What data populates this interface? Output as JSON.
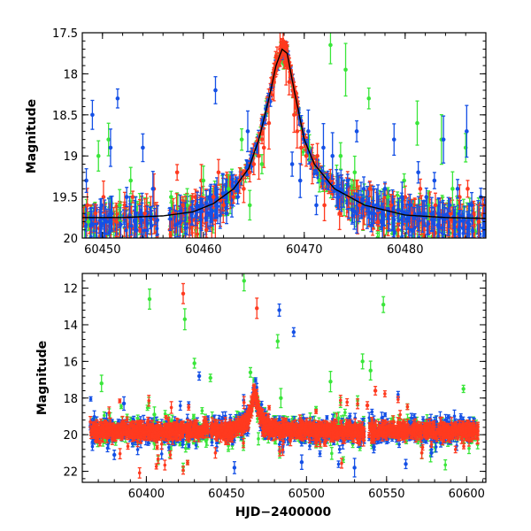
{
  "chart_data": [
    {
      "type": "scatter",
      "panel": "top",
      "title": "",
      "xlabel": "",
      "ylabel": "Magnitude",
      "xlim": [
        60448,
        60488
      ],
      "ylim": [
        17.5,
        20
      ],
      "y_inverted": true,
      "xticks": [
        60450,
        60460,
        60470,
        60480
      ],
      "yticks": [
        17.5,
        18,
        18.5,
        19,
        19.5,
        20
      ],
      "grid": false,
      "colors": {
        "red": "#ff3a1f",
        "green": "#3ae63a",
        "blue": "#1450e6",
        "model": "#000000"
      },
      "model_curve": {
        "description_free": true,
        "x": [
          60448,
          60452,
          60456,
          60459,
          60461,
          60463,
          60464.5,
          60465.5,
          60466.5,
          60467.2,
          60467.8,
          60468.3,
          60469,
          60470,
          60471,
          60473,
          60476,
          60480,
          60484,
          60488
        ],
        "y": [
          19.75,
          19.75,
          19.73,
          19.68,
          19.58,
          19.4,
          19.15,
          18.8,
          18.3,
          17.9,
          17.7,
          17.75,
          18.2,
          18.8,
          19.1,
          19.4,
          19.6,
          19.72,
          19.75,
          19.76
        ]
      },
      "series": [
        {
          "color": "red",
          "x": [
            60448.5,
            60449.3,
            60450.1,
            60451.4,
            60452.2,
            60453.0,
            60454.2,
            60455.1,
            60457.0,
            60457.4,
            60458.0,
            60458.6,
            60459.2,
            60459.8,
            60460.3,
            60461.0,
            60461.5,
            60462.0,
            60462.6,
            60463.0,
            60463.6,
            60464.0,
            60464.6,
            60465.0,
            60465.5,
            60466.0,
            60466.5,
            60467.0,
            60467.3,
            60467.6,
            60467.9,
            60468.2,
            60468.5,
            60469.0,
            60469.3,
            60469.7,
            60470.2,
            60470.8,
            60471.3,
            60472.0,
            60472.6,
            60473.5,
            60474.4,
            60475.5,
            60476.5,
            60477.3,
            60478.0,
            60478.6,
            60479.3,
            60480.0,
            60480.6,
            60481.5,
            60483.0,
            60484.5,
            60485.4,
            60486.2,
            60486.8,
            60487.3,
            60487.7
          ],
          "y": [
            19.6,
            19.7,
            19.5,
            19.8,
            19.6,
            19.5,
            19.7,
            19.4,
            19.7,
            19.2,
            19.6,
            19.8,
            19.5,
            19.3,
            19.9,
            19.5,
            19.2,
            19.6,
            19.4,
            19.5,
            19.3,
            19.4,
            19.2,
            19.1,
            19.0,
            18.9,
            18.6,
            18.1,
            17.8,
            17.7,
            17.6,
            17.9,
            18.1,
            18.5,
            18.7,
            18.9,
            19.0,
            19.1,
            19.0,
            19.6,
            19.3,
            19.7,
            19.5,
            19.6,
            19.4,
            19.8,
            19.5,
            19.6,
            19.9,
            19.5,
            19.7,
            19.4,
            19.6,
            19.7,
            19.5,
            19.4,
            19.7,
            19.8,
            19.6
          ]
        },
        {
          "color": "green",
          "x": [
            60448.6,
            60449.6,
            60450.6,
            60451.7,
            60452.8,
            60456.8,
            60458.4,
            60460.0,
            60462.5,
            60463.8,
            60464.6,
            60465.8,
            60470.5,
            60471.5,
            60472.6,
            60473.6,
            60474.1,
            60475.0,
            60476.4,
            60478.3,
            60479.9,
            60481.2,
            60482.3,
            60483.6,
            60484.7,
            60486.0
          ],
          "y": [
            19.8,
            19.0,
            18.8,
            19.6,
            19.3,
            19.5,
            19.6,
            19.3,
            19.4,
            18.8,
            19.6,
            19.1,
            18.9,
            19.3,
            17.65,
            19.0,
            17.95,
            19.2,
            18.3,
            19.5,
            19.3,
            18.6,
            19.6,
            18.8,
            19.4,
            18.9
          ]
        },
        {
          "color": "blue",
          "x": [
            60448.4,
            60449.0,
            60449.9,
            60450.8,
            60451.5,
            60452.4,
            60453.3,
            60454.0,
            60455.0,
            60458.2,
            60459.4,
            60460.6,
            60461.2,
            60462.3,
            60463.4,
            60464.4,
            60468.8,
            60469.6,
            60470.4,
            60471.2,
            60471.9,
            60472.8,
            60473.4,
            60474.3,
            60475.2,
            60475.9,
            60476.8,
            60478.0,
            60478.9,
            60479.7,
            60480.5,
            60481.3,
            60482.1,
            60482.9,
            60483.8,
            60484.4,
            60485.2,
            60486.1,
            60486.6,
            60487.5
          ],
          "y": [
            19.3,
            18.5,
            19.6,
            18.9,
            18.3,
            19.5,
            19.7,
            18.9,
            19.4,
            19.7,
            19.6,
            19.5,
            18.2,
            19.7,
            19.5,
            18.7,
            19.1,
            19.3,
            18.7,
            19.6,
            18.9,
            19.0,
            19.5,
            19.3,
            18.7,
            19.4,
            19.7,
            19.4,
            18.8,
            19.5,
            19.6,
            19.2,
            19.5,
            19.3,
            18.8,
            19.6,
            19.4,
            18.7,
            19.6,
            19.5
          ]
        }
      ]
    },
    {
      "type": "scatter",
      "panel": "bottom",
      "title": "",
      "xlabel": "HJD−2400000",
      "ylabel": "Magnitude",
      "xlim": [
        60360,
        60612
      ],
      "ylim": [
        11.2,
        22.6
      ],
      "y_inverted": true,
      "xticks": [
        60400,
        60450,
        60500,
        60550,
        60600
      ],
      "yticks": [
        12,
        14,
        16,
        18,
        20,
        22
      ],
      "grid": false,
      "colors": {
        "red": "#ff3a1f",
        "green": "#3ae63a",
        "blue": "#1450e6"
      },
      "series": [
        {
          "color": "red",
          "outliers": {
            "x": [
              60423,
              60469,
              60543,
              60538
            ],
            "y": [
              12.3,
              13.1,
              17.6,
              18.4
            ]
          }
        },
        {
          "color": "green",
          "outliers": {
            "x": [
              60402,
              60424,
              60430,
              60440,
              60461,
              60465,
              60482,
              60484,
              60515,
              60535,
              60540,
              60548,
              60372,
              60405,
              60520,
              60598
            ],
            "y": [
              12.6,
              13.7,
              16.1,
              16.9,
              11.6,
              16.6,
              14.9,
              18.0,
              17.1,
              16.0,
              16.5,
              12.9,
              17.2,
              18.9,
              19.1,
              17.5
            ]
          }
        },
        {
          "color": "blue",
          "outliers": {
            "x": [
              60483,
              60492,
              60433,
              60455,
              60497,
              60530,
              60562,
              60386,
              60380,
              60578
            ],
            "y": [
              13.2,
              14.4,
              16.8,
              21.8,
              21.5,
              21.8,
              21.6,
              18.3,
              21.1,
              21.0
            ]
          }
        }
      ]
    }
  ]
}
